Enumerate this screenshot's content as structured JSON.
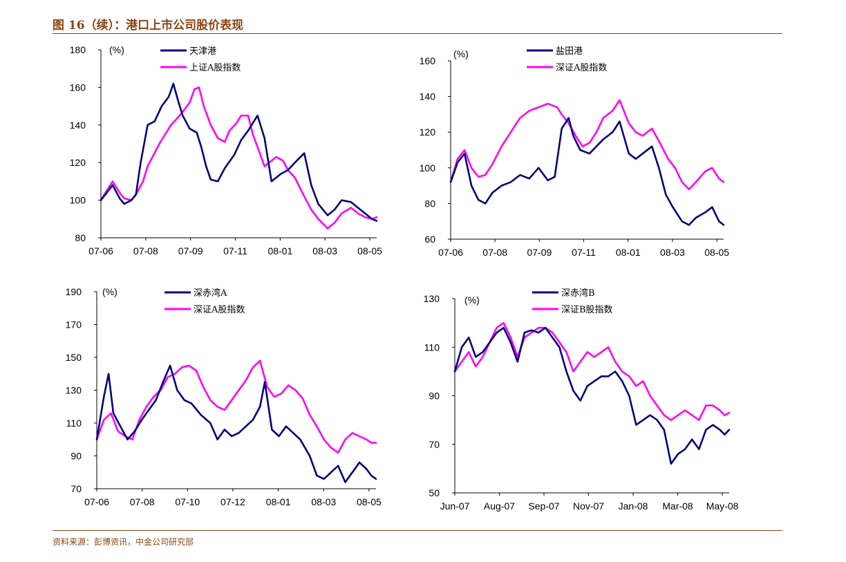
{
  "header": {
    "title": "图 16（续）：港口上市公司股价表现"
  },
  "footer": {
    "source": "资料来源：彭博资讯，中金公司研究部"
  },
  "colors": {
    "stock": "#000080",
    "index": "#FF00FF",
    "brand": "#8B4513"
  },
  "chart_data": [
    {
      "type": "line",
      "unit_label": "(%)",
      "ylim": [
        80,
        180
      ],
      "yticks": [
        80,
        100,
        120,
        140,
        160,
        180
      ],
      "xticks": [
        "07-06",
        "07-08",
        "07-09",
        "07-11",
        "08-01",
        "08-03",
        "08-05"
      ],
      "x_range": [
        0,
        11.8
      ],
      "series": [
        {
          "name": "天津港",
          "color": "#000080",
          "x": [
            0,
            0.5,
            0.8,
            1.0,
            1.3,
            1.5,
            1.7,
            2.0,
            2.3,
            2.6,
            2.9,
            3.1,
            3.3,
            3.5,
            3.8,
            4.1,
            4.3,
            4.5,
            4.7,
            5.0,
            5.3,
            5.7,
            6.0,
            6.3,
            6.7,
            7.0,
            7.3,
            7.7,
            8.0,
            8.3,
            8.7,
            9.0,
            9.3,
            9.7,
            10.0,
            10.3,
            10.7,
            11.0,
            11.3,
            11.6,
            11.8
          ],
          "values": [
            100,
            108,
            101,
            98,
            100,
            103,
            120,
            140,
            142,
            150,
            155,
            162,
            153,
            145,
            138,
            136,
            128,
            118,
            111,
            110,
            117,
            124,
            132,
            137,
            145,
            133,
            110,
            114,
            116,
            120,
            125,
            108,
            98,
            92,
            95,
            100,
            99,
            96,
            93,
            90,
            89
          ]
        },
        {
          "name": "上证A股指数",
          "color": "#FF00FF",
          "x": [
            0,
            0.3,
            0.5,
            0.8,
            1.0,
            1.3,
            1.5,
            1.8,
            2.0,
            2.5,
            3.0,
            3.3,
            3.5,
            3.8,
            4.0,
            4.2,
            4.4,
            4.7,
            5.0,
            5.3,
            5.5,
            5.8,
            6.0,
            6.3,
            6.5,
            6.8,
            7.0,
            7.2,
            7.5,
            7.8,
            8.0,
            8.3,
            8.7,
            9.0,
            9.3,
            9.7,
            10.0,
            10.3,
            10.7,
            11.0,
            11.3,
            11.6,
            11.8
          ],
          "values": [
            100,
            106,
            110,
            104,
            101,
            100,
            103,
            110,
            118,
            130,
            140,
            144,
            147,
            152,
            159,
            160,
            150,
            140,
            133,
            131,
            137,
            141,
            145,
            145,
            135,
            125,
            118,
            120,
            123,
            121,
            116,
            112,
            102,
            95,
            90,
            85,
            88,
            93,
            96,
            93,
            91,
            90,
            91
          ]
        }
      ]
    },
    {
      "type": "line",
      "unit_label": "(%)",
      "ylim": [
        60,
        160
      ],
      "yticks": [
        60,
        80,
        100,
        120,
        140,
        160
      ],
      "xticks": [
        "07-06",
        "07-08",
        "07-09",
        "07-11",
        "08-01",
        "08-03",
        "08-05"
      ],
      "x_range": [
        0,
        11.8
      ],
      "series": [
        {
          "name": "盐田港",
          "color": "#000080",
          "x": [
            0,
            0.3,
            0.6,
            0.9,
            1.2,
            1.5,
            1.8,
            2.2,
            2.6,
            3.0,
            3.4,
            3.8,
            4.2,
            4.5,
            4.8,
            5.1,
            5.3,
            5.6,
            6.0,
            6.3,
            6.6,
            7.0,
            7.3,
            7.7,
            8.0,
            8.3,
            8.7,
            9.0,
            9.3,
            9.6,
            10.0,
            10.3,
            10.6,
            11.0,
            11.3,
            11.6,
            11.8
          ],
          "values": [
            92,
            103,
            108,
            90,
            82,
            80,
            86,
            90,
            92,
            96,
            94,
            100,
            93,
            95,
            122,
            128,
            118,
            110,
            108,
            112,
            116,
            120,
            126,
            108,
            105,
            108,
            112,
            100,
            85,
            78,
            70,
            68,
            72,
            75,
            78,
            70,
            68
          ]
        },
        {
          "name": "深证A股指数",
          "color": "#FF00FF",
          "x": [
            0,
            0.3,
            0.6,
            0.9,
            1.2,
            1.5,
            1.8,
            2.2,
            2.6,
            3.0,
            3.4,
            3.8,
            4.2,
            4.6,
            4.8,
            5.1,
            5.4,
            5.7,
            6.0,
            6.3,
            6.6,
            7.0,
            7.3,
            7.7,
            8.0,
            8.3,
            8.7,
            9.0,
            9.4,
            9.7,
            10.0,
            10.3,
            10.6,
            11.0,
            11.3,
            11.6,
            11.8
          ],
          "values": [
            92,
            105,
            110,
            100,
            95,
            96,
            102,
            112,
            120,
            128,
            132,
            134,
            136,
            134,
            130,
            125,
            118,
            112,
            114,
            120,
            128,
            132,
            138,
            125,
            120,
            118,
            122,
            115,
            105,
            100,
            92,
            88,
            92,
            98,
            100,
            94,
            92
          ]
        }
      ]
    },
    {
      "type": "line",
      "unit_label": "(%)",
      "ylim": [
        70,
        190
      ],
      "yticks": [
        70,
        90,
        110,
        130,
        150,
        170,
        190
      ],
      "xticks": [
        "07-06",
        "07-08",
        "07-10",
        "07-12",
        "08-01",
        "08-03",
        "08-05"
      ],
      "x_range": [
        0,
        11.8
      ],
      "series": [
        {
          "name": "深赤湾A",
          "color": "#000080",
          "x": [
            0,
            0.3,
            0.5,
            0.7,
            1.0,
            1.3,
            1.6,
            1.9,
            2.2,
            2.5,
            2.8,
            3.1,
            3.4,
            3.7,
            4.0,
            4.4,
            4.8,
            5.1,
            5.4,
            5.7,
            6.0,
            6.3,
            6.6,
            6.9,
            7.1,
            7.4,
            7.7,
            8.0,
            8.3,
            8.6,
            9.0,
            9.3,
            9.6,
            9.9,
            10.2,
            10.5,
            10.8,
            11.1,
            11.4,
            11.6,
            11.8
          ],
          "values": [
            100,
            126,
            140,
            116,
            108,
            100,
            105,
            112,
            118,
            124,
            135,
            145,
            130,
            124,
            122,
            115,
            110,
            100,
            106,
            102,
            104,
            108,
            112,
            120,
            135,
            106,
            102,
            108,
            104,
            100,
            90,
            78,
            76,
            80,
            84,
            74,
            80,
            86,
            82,
            78,
            76
          ]
        },
        {
          "name": "深证A股指数",
          "color": "#FF00FF",
          "x": [
            0,
            0.3,
            0.6,
            0.9,
            1.2,
            1.5,
            1.8,
            2.1,
            2.4,
            2.7,
            3.0,
            3.3,
            3.6,
            3.9,
            4.2,
            4.5,
            4.8,
            5.1,
            5.4,
            5.7,
            6.0,
            6.3,
            6.6,
            6.9,
            7.2,
            7.5,
            7.8,
            8.1,
            8.4,
            8.7,
            9.0,
            9.3,
            9.6,
            9.9,
            10.2,
            10.5,
            10.8,
            11.1,
            11.4,
            11.6,
            11.8
          ],
          "values": [
            100,
            112,
            116,
            105,
            102,
            100,
            112,
            120,
            126,
            130,
            138,
            140,
            144,
            145,
            142,
            132,
            124,
            120,
            118,
            124,
            130,
            136,
            144,
            148,
            132,
            126,
            128,
            133,
            130,
            125,
            115,
            108,
            100,
            95,
            92,
            100,
            104,
            102,
            100,
            98,
            98
          ]
        }
      ]
    },
    {
      "type": "line",
      "unit_label": "(%)",
      "ylim": [
        50,
        130
      ],
      "yticks": [
        50,
        70,
        90,
        110,
        130
      ],
      "xticks": [
        "Jun-07",
        "Aug-07",
        "Sep-07",
        "Nov-07",
        "Jan-08",
        "Mar-08",
        "May-08"
      ],
      "x_range": [
        0,
        11.8
      ],
      "series": [
        {
          "name": "深赤湾B",
          "color": "#000080",
          "x": [
            0,
            0.3,
            0.6,
            0.9,
            1.2,
            1.5,
            1.8,
            2.1,
            2.4,
            2.7,
            3.0,
            3.3,
            3.6,
            3.9,
            4.2,
            4.5,
            4.8,
            5.1,
            5.4,
            5.7,
            6.0,
            6.3,
            6.6,
            6.9,
            7.2,
            7.5,
            7.8,
            8.1,
            8.4,
            8.7,
            9.0,
            9.3,
            9.6,
            9.9,
            10.2,
            10.5,
            10.8,
            11.1,
            11.4,
            11.6,
            11.8
          ],
          "values": [
            100,
            110,
            114,
            106,
            108,
            112,
            116,
            118,
            112,
            104,
            116,
            117,
            116,
            118,
            114,
            110,
            100,
            92,
            88,
            94,
            96,
            98,
            98,
            100,
            96,
            90,
            78,
            80,
            82,
            80,
            76,
            62,
            66,
            68,
            72,
            68,
            76,
            78,
            76,
            74,
            76
          ]
        },
        {
          "name": "深证B股指数",
          "color": "#FF00FF",
          "x": [
            0,
            0.3,
            0.6,
            0.9,
            1.2,
            1.5,
            1.8,
            2.1,
            2.4,
            2.7,
            3.0,
            3.3,
            3.6,
            3.9,
            4.2,
            4.5,
            4.8,
            5.1,
            5.4,
            5.7,
            6.0,
            6.3,
            6.6,
            6.9,
            7.2,
            7.5,
            7.8,
            8.1,
            8.4,
            8.7,
            9.0,
            9.3,
            9.6,
            9.9,
            10.2,
            10.5,
            10.8,
            11.1,
            11.4,
            11.6,
            11.8
          ],
          "values": [
            100,
            104,
            108,
            102,
            106,
            112,
            118,
            120,
            114,
            106,
            114,
            116,
            118,
            118,
            116,
            112,
            108,
            100,
            104,
            108,
            106,
            108,
            110,
            104,
            100,
            98,
            94,
            96,
            90,
            86,
            82,
            80,
            82,
            84,
            82,
            80,
            86,
            86,
            84,
            82,
            83
          ]
        }
      ]
    }
  ]
}
